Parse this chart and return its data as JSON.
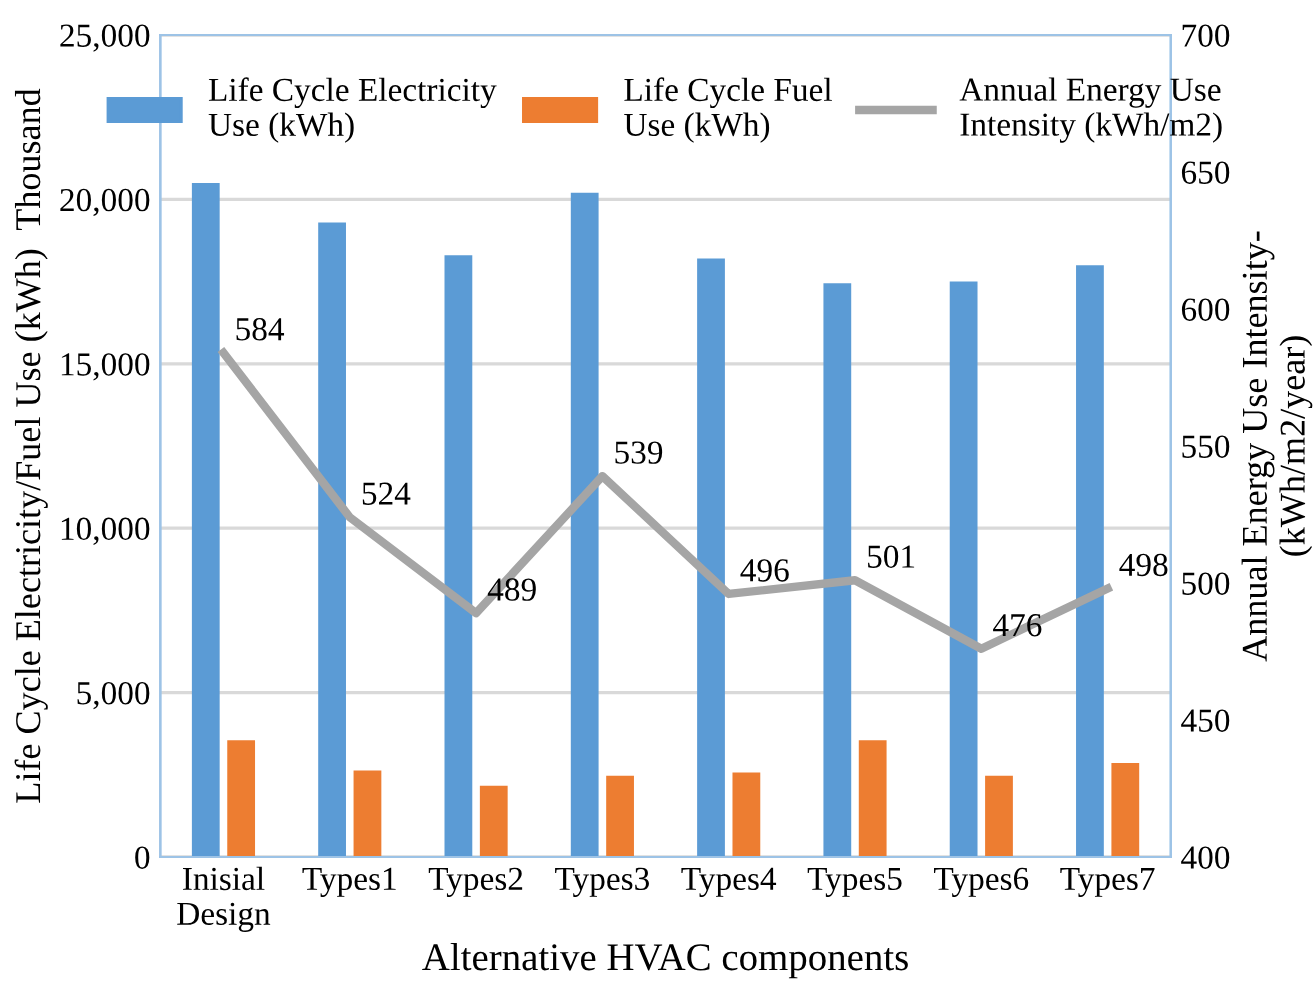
{
  "chart_data": {
    "type": "bar",
    "xlabel": "Alternative HVAC components",
    "ylabel": "Life Cycle Electricity/Fuel Use (kWh)  Thousand",
    "y2label": "Annual Energy Use Intensity-\n(kWh/m2/year)",
    "categories": [
      "Inisial\nDesign",
      "Types1",
      "Types2",
      "Types3",
      "Types4",
      "Types5",
      "Types6",
      "Types7"
    ],
    "series": [
      {
        "name": "Life Cycle Electricity\nUse (kWh)",
        "color": "#5b9bd5",
        "values": [
          20500,
          19300,
          18300,
          20200,
          18200,
          17450,
          17500,
          18000
        ]
      },
      {
        "name": "Life Cycle Fuel\nUse (kWh)",
        "color": "#ed7d31",
        "values": [
          3550,
          2630,
          2170,
          2470,
          2570,
          3550,
          2470,
          2860
        ]
      },
      {
        "name": "Annual Energy Use\nIntensity (kWh/m2)",
        "color": "#a5a5a5",
        "type": "line",
        "axis": "y2",
        "values": [
          584,
          524,
          489,
          539,
          496,
          501,
          476,
          498
        ],
        "value_labels": [
          "584",
          "524",
          "489",
          "539",
          "496",
          "501",
          "476",
          "498"
        ]
      }
    ],
    "ylim": [
      0,
      25000
    ],
    "yticks": [
      {
        "value": 0,
        "label": "0"
      },
      {
        "value": 5000,
        "label": "5,000"
      },
      {
        "value": 10000,
        "label": "10,000"
      },
      {
        "value": 15000,
        "label": "15,000"
      },
      {
        "value": 20000,
        "label": "20,000"
      },
      {
        "value": 25000,
        "label": "25,000"
      }
    ],
    "y2lim": [
      400,
      700
    ],
    "y2ticks": [
      400,
      450,
      500,
      550,
      600,
      650,
      700
    ],
    "grid": "y",
    "legend": "top",
    "marker": "none",
    "line_style": "solid"
  }
}
